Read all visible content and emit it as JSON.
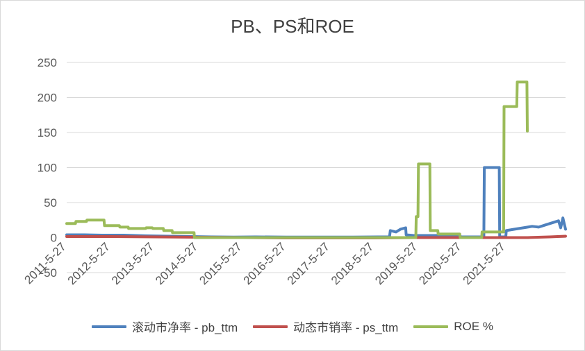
{
  "chart_data": {
    "type": "line",
    "title": "PB、PS和ROE",
    "ylim": [
      -50,
      250
    ],
    "yticks": [
      -50,
      0,
      50,
      100,
      150,
      200,
      250
    ],
    "ytick_labels": [
      "-50",
      "0",
      "50",
      "100",
      "150",
      "200",
      "250"
    ],
    "x_tick_labels": [
      "2011-5-27",
      "2012-5-27",
      "2013-5-27",
      "2014-5-27",
      "2015-5-27",
      "2016-5-27",
      "2017-5-27",
      "2018-5-27",
      "2019-5-27",
      "2020-5-27",
      "2021-5-27"
    ],
    "legend_position": "bottom",
    "series": [
      {
        "name": "滚动市净率 - pb_ttm",
        "color": "#4f81bd",
        "points": [
          [
            2011.0,
            4
          ],
          [
            2011.4,
            4
          ],
          [
            2011.8,
            3.5
          ],
          [
            2012.3,
            3.5
          ],
          [
            2012.8,
            2.5
          ],
          [
            2013.3,
            2
          ],
          [
            2013.8,
            1.5
          ],
          [
            2014.3,
            1
          ],
          [
            2014.8,
            0.8
          ],
          [
            2015.3,
            1
          ],
          [
            2016.0,
            0.8
          ],
          [
            2016.8,
            0.8
          ],
          [
            2017.5,
            0.8
          ],
          [
            2018.1,
            1
          ],
          [
            2018.35,
            1
          ],
          [
            2018.37,
            10
          ],
          [
            2018.5,
            8
          ],
          [
            2018.6,
            12
          ],
          [
            2018.72,
            14
          ],
          [
            2018.73,
            4
          ],
          [
            2018.9,
            3
          ],
          [
            2019.2,
            3
          ],
          [
            2019.6,
            3
          ],
          [
            2019.9,
            2
          ],
          [
            2020.0,
            1
          ],
          [
            2020.5,
            1
          ],
          [
            2020.51,
            100
          ],
          [
            2020.85,
            100
          ],
          [
            2020.86,
            1
          ],
          [
            2021.0,
            1
          ],
          [
            2021.01,
            10
          ],
          [
            2021.2,
            12
          ],
          [
            2021.4,
            14
          ],
          [
            2021.6,
            16
          ],
          [
            2021.75,
            15
          ],
          [
            2021.9,
            18
          ],
          [
            2022.0,
            20
          ],
          [
            2022.1,
            22
          ],
          [
            2022.2,
            24
          ],
          [
            2022.25,
            14
          ],
          [
            2022.3,
            28
          ],
          [
            2022.36,
            12
          ]
        ]
      },
      {
        "name": "动态市销率 - ps_ttm",
        "color": "#c0504d",
        "points": [
          [
            2011.0,
            1.5
          ],
          [
            2012.0,
            1.5
          ],
          [
            2013.0,
            1
          ],
          [
            2014.0,
            0.5
          ],
          [
            2015.0,
            0
          ],
          [
            2016.0,
            -0.5
          ],
          [
            2017.0,
            -0.5
          ],
          [
            2018.0,
            -0.5
          ],
          [
            2019.0,
            0
          ],
          [
            2020.0,
            0
          ],
          [
            2021.0,
            0
          ],
          [
            2021.5,
            0
          ],
          [
            2022.0,
            1
          ],
          [
            2022.36,
            2
          ]
        ]
      },
      {
        "name": "ROE %",
        "color": "#9bbb59",
        "points": [
          [
            2011.0,
            20
          ],
          [
            2011.2,
            20
          ],
          [
            2011.21,
            23
          ],
          [
            2011.45,
            23
          ],
          [
            2011.46,
            25
          ],
          [
            2011.85,
            25
          ],
          [
            2011.86,
            17
          ],
          [
            2012.2,
            17
          ],
          [
            2012.21,
            15
          ],
          [
            2012.4,
            15
          ],
          [
            2012.41,
            13
          ],
          [
            2012.8,
            13
          ],
          [
            2012.81,
            14
          ],
          [
            2012.95,
            14
          ],
          [
            2012.96,
            13
          ],
          [
            2013.2,
            13
          ],
          [
            2013.21,
            10
          ],
          [
            2013.4,
            10
          ],
          [
            2013.41,
            7
          ],
          [
            2013.9,
            7
          ],
          [
            2013.91,
            0
          ],
          [
            2018.95,
            0
          ],
          [
            2018.96,
            30
          ],
          [
            2019.0,
            30
          ],
          [
            2019.01,
            105
          ],
          [
            2019.27,
            105
          ],
          [
            2019.28,
            10
          ],
          [
            2019.45,
            10
          ],
          [
            2019.46,
            5
          ],
          [
            2019.95,
            5
          ],
          [
            2019.96,
            0
          ],
          [
            2020.45,
            0
          ],
          [
            2020.46,
            8
          ],
          [
            2020.95,
            8
          ],
          [
            2020.96,
            187
          ],
          [
            2021.25,
            187
          ],
          [
            2021.26,
            222
          ],
          [
            2021.48,
            222
          ],
          [
            2021.49,
            152
          ]
        ]
      }
    ]
  }
}
